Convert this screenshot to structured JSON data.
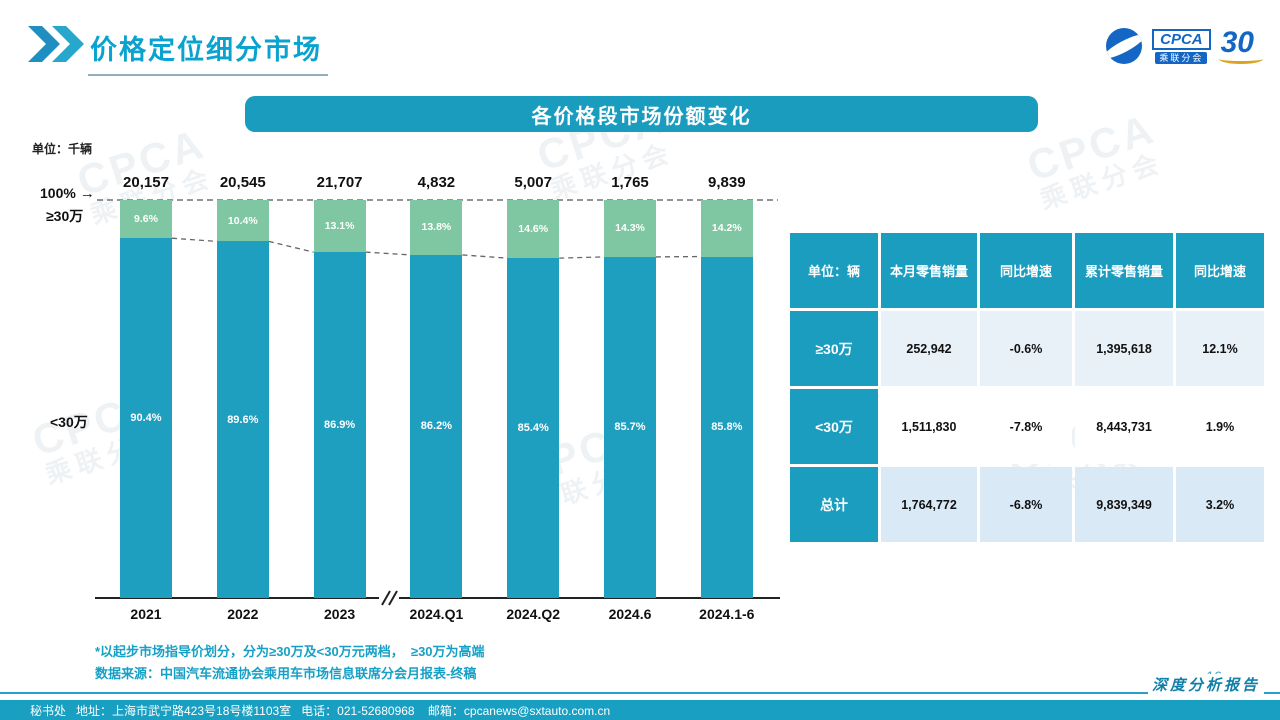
{
  "header": {
    "title": "价格定位细分市场",
    "logo": {
      "cpca": "CPCA",
      "cpca_sub": "乘联分会",
      "anniversary": "30"
    }
  },
  "banner": {
    "title": "各价格段市场份额变化"
  },
  "icons": {
    "arrow_right": "→"
  },
  "watermark": {
    "line1": "CPCA",
    "line2": "乘联分会"
  },
  "chart_data": {
    "type": "bar",
    "subtype": "stacked-100-percent",
    "unit_label": "单位：千辆",
    "axis_top_label": "100%",
    "segment_labels": {
      "high": "≥30万",
      "low": "<30万"
    },
    "categories": [
      "2021",
      "2022",
      "2023",
      "2024.Q1",
      "2024.Q2",
      "2024.6",
      "2024.1-6"
    ],
    "totals": [
      "20,157",
      "20,545",
      "21,707",
      "4,832",
      "5,007",
      "1,765",
      "9,839"
    ],
    "series": [
      {
        "name": "≥30万",
        "values": [
          9.6,
          10.4,
          13.1,
          13.8,
          14.6,
          14.3,
          14.2
        ],
        "color": "#7fc7a2"
      },
      {
        "name": "<30万",
        "values": [
          90.4,
          89.6,
          86.9,
          86.2,
          85.4,
          85.7,
          85.8
        ],
        "color": "#1f9fc0"
      }
    ],
    "ylim": [
      0,
      100
    ],
    "grid": false,
    "axis_break": "//",
    "legend_position": "left-of-bars"
  },
  "table": {
    "headers": [
      "单位：辆",
      "本月零售销量",
      "同比增速",
      "累计零售销量",
      "同比增速"
    ],
    "rows": [
      {
        "label": "≥30万",
        "cells": [
          "252,942",
          "-0.6%",
          "1,395,618",
          "12.1%"
        ]
      },
      {
        "label": "<30万",
        "cells": [
          "1,511,830",
          "-7.8%",
          "8,443,731",
          "1.9%"
        ]
      },
      {
        "label": "总计",
        "cells": [
          "1,764,772",
          "-6.8%",
          "9,839,349",
          "3.2%"
        ]
      }
    ]
  },
  "notes": {
    "line1": "*以起步市场指导价划分，分为≥30万及<30万元两档，  ≥30万为高端",
    "line2": "数据来源：中国汽车流通协会乘用车市场信息联席分会月报表-终稿"
  },
  "footer": {
    "text": "秘书处   地址：上海市武宁路423号18号楼1103室   电话：021-52680968    邮箱：cpcanews@sxtauto.com.cn",
    "page": "16",
    "report_label": "深度分析报告"
  },
  "colors": {
    "accent_teal": "#1a9cbe",
    "bar_low": "#1f9fc0",
    "bar_high": "#7fc7a2",
    "title_teal": "#0aa3cf",
    "logo_blue": "#1366c4",
    "table_row_alt": "#e9f1f8"
  }
}
